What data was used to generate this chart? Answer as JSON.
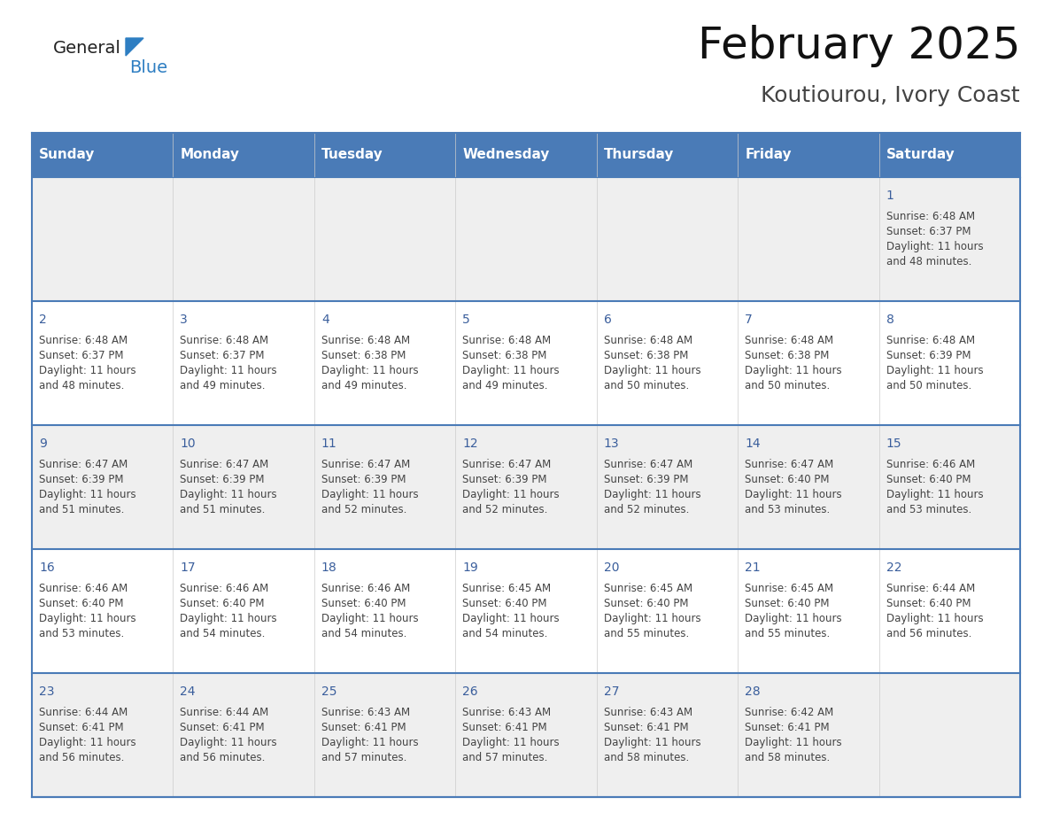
{
  "title": "February 2025",
  "subtitle": "Koutiourou, Ivory Coast",
  "header_bg_color": "#4A7BB7",
  "header_text_color": "#FFFFFF",
  "header_font_size": 11,
  "day_names": [
    "Sunday",
    "Monday",
    "Tuesday",
    "Wednesday",
    "Thursday",
    "Friday",
    "Saturday"
  ],
  "title_font_size": 36,
  "subtitle_font_size": 18,
  "cell_bg_row0": "#EFEFEF",
  "cell_bg_even": "#EFEFEF",
  "cell_bg_odd": "#FFFFFF",
  "border_color": "#4A7BB7",
  "day_num_color": "#3A5E9C",
  "info_text_color": "#444444",
  "logo_general_color": "#222222",
  "logo_blue_color": "#2E7EC2",
  "days_data": [
    {
      "day": 1,
      "col": 6,
      "row": 0,
      "sunrise": "6:48 AM",
      "sunset": "6:37 PM",
      "daylight_line1": "Daylight: 11 hours",
      "daylight_line2": "and 48 minutes."
    },
    {
      "day": 2,
      "col": 0,
      "row": 1,
      "sunrise": "6:48 AM",
      "sunset": "6:37 PM",
      "daylight_line1": "Daylight: 11 hours",
      "daylight_line2": "and 48 minutes."
    },
    {
      "day": 3,
      "col": 1,
      "row": 1,
      "sunrise": "6:48 AM",
      "sunset": "6:37 PM",
      "daylight_line1": "Daylight: 11 hours",
      "daylight_line2": "and 49 minutes."
    },
    {
      "day": 4,
      "col": 2,
      "row": 1,
      "sunrise": "6:48 AM",
      "sunset": "6:38 PM",
      "daylight_line1": "Daylight: 11 hours",
      "daylight_line2": "and 49 minutes."
    },
    {
      "day": 5,
      "col": 3,
      "row": 1,
      "sunrise": "6:48 AM",
      "sunset": "6:38 PM",
      "daylight_line1": "Daylight: 11 hours",
      "daylight_line2": "and 49 minutes."
    },
    {
      "day": 6,
      "col": 4,
      "row": 1,
      "sunrise": "6:48 AM",
      "sunset": "6:38 PM",
      "daylight_line1": "Daylight: 11 hours",
      "daylight_line2": "and 50 minutes."
    },
    {
      "day": 7,
      "col": 5,
      "row": 1,
      "sunrise": "6:48 AM",
      "sunset": "6:38 PM",
      "daylight_line1": "Daylight: 11 hours",
      "daylight_line2": "and 50 minutes."
    },
    {
      "day": 8,
      "col": 6,
      "row": 1,
      "sunrise": "6:48 AM",
      "sunset": "6:39 PM",
      "daylight_line1": "Daylight: 11 hours",
      "daylight_line2": "and 50 minutes."
    },
    {
      "day": 9,
      "col": 0,
      "row": 2,
      "sunrise": "6:47 AM",
      "sunset": "6:39 PM",
      "daylight_line1": "Daylight: 11 hours",
      "daylight_line2": "and 51 minutes."
    },
    {
      "day": 10,
      "col": 1,
      "row": 2,
      "sunrise": "6:47 AM",
      "sunset": "6:39 PM",
      "daylight_line1": "Daylight: 11 hours",
      "daylight_line2": "and 51 minutes."
    },
    {
      "day": 11,
      "col": 2,
      "row": 2,
      "sunrise": "6:47 AM",
      "sunset": "6:39 PM",
      "daylight_line1": "Daylight: 11 hours",
      "daylight_line2": "and 52 minutes."
    },
    {
      "day": 12,
      "col": 3,
      "row": 2,
      "sunrise": "6:47 AM",
      "sunset": "6:39 PM",
      "daylight_line1": "Daylight: 11 hours",
      "daylight_line2": "and 52 minutes."
    },
    {
      "day": 13,
      "col": 4,
      "row": 2,
      "sunrise": "6:47 AM",
      "sunset": "6:39 PM",
      "daylight_line1": "Daylight: 11 hours",
      "daylight_line2": "and 52 minutes."
    },
    {
      "day": 14,
      "col": 5,
      "row": 2,
      "sunrise": "6:47 AM",
      "sunset": "6:40 PM",
      "daylight_line1": "Daylight: 11 hours",
      "daylight_line2": "and 53 minutes."
    },
    {
      "day": 15,
      "col": 6,
      "row": 2,
      "sunrise": "6:46 AM",
      "sunset": "6:40 PM",
      "daylight_line1": "Daylight: 11 hours",
      "daylight_line2": "and 53 minutes."
    },
    {
      "day": 16,
      "col": 0,
      "row": 3,
      "sunrise": "6:46 AM",
      "sunset": "6:40 PM",
      "daylight_line1": "Daylight: 11 hours",
      "daylight_line2": "and 53 minutes."
    },
    {
      "day": 17,
      "col": 1,
      "row": 3,
      "sunrise": "6:46 AM",
      "sunset": "6:40 PM",
      "daylight_line1": "Daylight: 11 hours",
      "daylight_line2": "and 54 minutes."
    },
    {
      "day": 18,
      "col": 2,
      "row": 3,
      "sunrise": "6:46 AM",
      "sunset": "6:40 PM",
      "daylight_line1": "Daylight: 11 hours",
      "daylight_line2": "and 54 minutes."
    },
    {
      "day": 19,
      "col": 3,
      "row": 3,
      "sunrise": "6:45 AM",
      "sunset": "6:40 PM",
      "daylight_line1": "Daylight: 11 hours",
      "daylight_line2": "and 54 minutes."
    },
    {
      "day": 20,
      "col": 4,
      "row": 3,
      "sunrise": "6:45 AM",
      "sunset": "6:40 PM",
      "daylight_line1": "Daylight: 11 hours",
      "daylight_line2": "and 55 minutes."
    },
    {
      "day": 21,
      "col": 5,
      "row": 3,
      "sunrise": "6:45 AM",
      "sunset": "6:40 PM",
      "daylight_line1": "Daylight: 11 hours",
      "daylight_line2": "and 55 minutes."
    },
    {
      "day": 22,
      "col": 6,
      "row": 3,
      "sunrise": "6:44 AM",
      "sunset": "6:40 PM",
      "daylight_line1": "Daylight: 11 hours",
      "daylight_line2": "and 56 minutes."
    },
    {
      "day": 23,
      "col": 0,
      "row": 4,
      "sunrise": "6:44 AM",
      "sunset": "6:41 PM",
      "daylight_line1": "Daylight: 11 hours",
      "daylight_line2": "and 56 minutes."
    },
    {
      "day": 24,
      "col": 1,
      "row": 4,
      "sunrise": "6:44 AM",
      "sunset": "6:41 PM",
      "daylight_line1": "Daylight: 11 hours",
      "daylight_line2": "and 56 minutes."
    },
    {
      "day": 25,
      "col": 2,
      "row": 4,
      "sunrise": "6:43 AM",
      "sunset": "6:41 PM",
      "daylight_line1": "Daylight: 11 hours",
      "daylight_line2": "and 57 minutes."
    },
    {
      "day": 26,
      "col": 3,
      "row": 4,
      "sunrise": "6:43 AM",
      "sunset": "6:41 PM",
      "daylight_line1": "Daylight: 11 hours",
      "daylight_line2": "and 57 minutes."
    },
    {
      "day": 27,
      "col": 4,
      "row": 4,
      "sunrise": "6:43 AM",
      "sunset": "6:41 PM",
      "daylight_line1": "Daylight: 11 hours",
      "daylight_line2": "and 58 minutes."
    },
    {
      "day": 28,
      "col": 5,
      "row": 4,
      "sunrise": "6:42 AM",
      "sunset": "6:41 PM",
      "daylight_line1": "Daylight: 11 hours",
      "daylight_line2": "and 58 minutes."
    }
  ]
}
